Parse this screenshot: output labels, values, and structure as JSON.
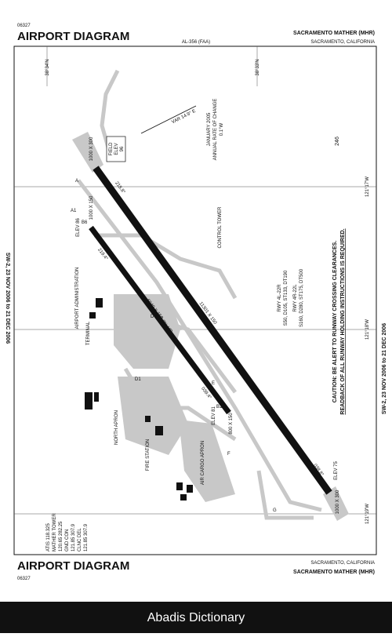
{
  "header": {
    "chart_number": "06327",
    "title": "AIRPORT DIAGRAM",
    "procedure_id": "AL-356 (FAA)",
    "airport": "SACRAMENTO MATHER (MHR)",
    "city": "SACRAMENTO, CALIFORNIA"
  },
  "footer": {
    "title": "AIRPORT DIAGRAM",
    "chart_number": "06327",
    "city": "SACRAMENTO, CALIFORNIA",
    "airport": "SACRAMENTO MATHER (MHR)"
  },
  "effective_dates": [
    "SW-2, 23 NOV 2006 to 21 DEC 2006",
    "SW-2, 23 NOV 2006 to 21 DEC 2006"
  ],
  "coordinates": {
    "lat_north": "38°34'N",
    "lat_south": "38°33'N",
    "lon_east": "121°17'W",
    "lon_mid": "121°18'W",
    "lon_west": "121°19'W"
  },
  "magnetic": {
    "variation": "VAR 14.9° E",
    "date": "JANUARY 2005",
    "rate_label": "ANNUAL RATE OF CHANGE",
    "rate": "0.1°W"
  },
  "elevations": {
    "field_label": "FIELD",
    "field_elev": "ELEV",
    "field_value": "96",
    "rwy_4l_end": "ELEV 86",
    "rwy_4r_end": "ELEV 81",
    "rwy_22r_end": "ELEV 75"
  },
  "runways": {
    "overrun_north": "1000 X 300",
    "overrun_4r": "1000 X 150",
    "rwy_4l_22r": "11301 X 150",
    "rwy_4r_22l": "6040 X 150",
    "overrun_22l": "800 X 150",
    "overrun_south": "1000 X 300",
    "hdg_218": "218.8°",
    "hdg_219": "219.4°",
    "hdg_038": "038.8°",
    "hdg_039": "039.4°",
    "gradient": "0.3% UP"
  },
  "facilities": {
    "tower": "CONTROL TOWER",
    "admin": "AIRPORT ADMINISTRATION",
    "terminal": "TERMINAL",
    "north_apron": "NORTH APRON",
    "cargo_apron": "AIR CARGO APRON",
    "fire": "FIRE STATION",
    "obstacle": "246"
  },
  "taxiways": [
    "A",
    "A1",
    "B6",
    "B1",
    "D",
    "D1",
    "E",
    "F",
    "G"
  ],
  "strength": [
    "RWY 4L-22R",
    "S50, D105, ST133, DT190",
    "RWY 4R-22L",
    "S160, D280, ST175, DT500"
  ],
  "caution": [
    "CAUTION: BE ALERT TO RUNWAY CROSSING CLEARANCES.",
    "READBACK OF ALL RUNWAY HOLDING INSTRUCTIONS IS REQUIRED."
  ],
  "frequencies": [
    "ATIS 118.325",
    "MATHER TOWER",
    "120.65 282.25",
    "GND CON",
    "121.85 307.9",
    "CLNC DEL",
    "121.85 307.9"
  ],
  "watermark": "Abadis Dictionary"
}
